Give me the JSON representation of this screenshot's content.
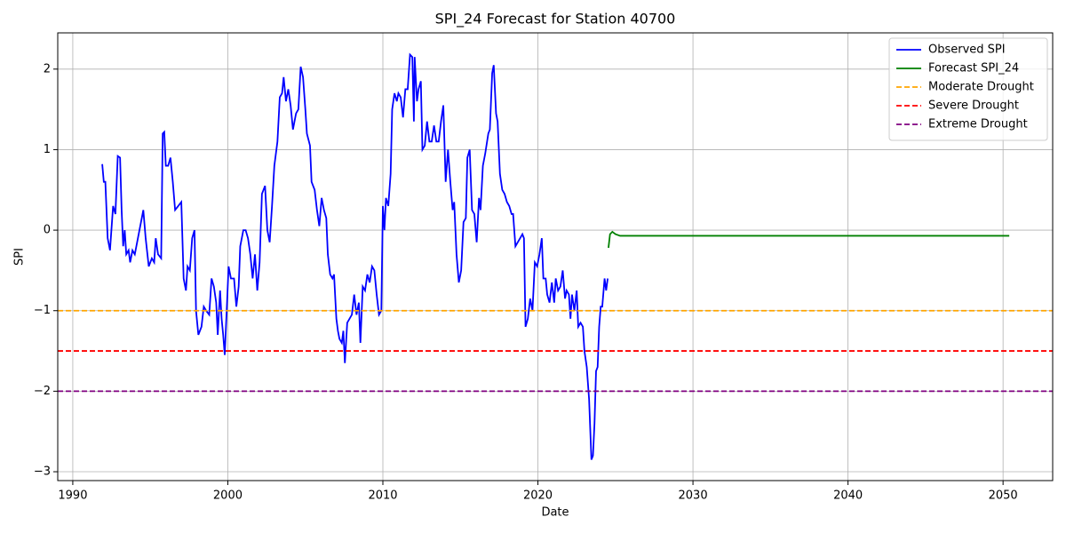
{
  "chart_data": {
    "type": "line",
    "title": "SPI_24 Forecast for Station 40700",
    "xlabel": "Date",
    "ylabel": "SPI",
    "xlim": [
      1989.03,
      2053.2
    ],
    "xticks": [
      1990,
      2000,
      2010,
      2020,
      2030,
      2040,
      2050
    ],
    "ylim": [
      -3.11,
      2.45
    ],
    "yticks": [
      {
        "value": -3,
        "label": "−3"
      },
      {
        "value": -2,
        "label": "−2"
      },
      {
        "value": -1,
        "label": "−1"
      },
      0,
      1,
      2
    ],
    "grid": true,
    "legend": "upper right",
    "series": [
      {
        "name": "Observed SPI",
        "color": "#0000ff",
        "x": [
          1991.9,
          1992.0,
          1992.1,
          1992.25,
          1992.4,
          1992.6,
          1992.75,
          1992.9,
          1993.05,
          1993.15,
          1993.25,
          1993.35,
          1993.45,
          1993.6,
          1993.7,
          1993.85,
          1994.0,
          1994.2,
          1994.4,
          1994.55,
          1994.7,
          1994.9,
          1995.1,
          1995.25,
          1995.35,
          1995.5,
          1995.7,
          1995.8,
          1995.9,
          1996.0,
          1996.15,
          1996.3,
          1996.45,
          1996.6,
          1996.8,
          1997.0,
          1997.15,
          1997.3,
          1997.4,
          1997.55,
          1997.7,
          1997.85,
          1997.95,
          1998.1,
          1998.3,
          1998.45,
          1998.6,
          1998.8,
          1998.95,
          1999.1,
          1999.25,
          1999.35,
          1999.5,
          1999.6,
          1999.7,
          1999.8,
          1999.95,
          2000.05,
          2000.2,
          2000.4,
          2000.55,
          2000.7,
          2000.8,
          2001.0,
          2001.15,
          2001.3,
          2001.45,
          2001.6,
          2001.75,
          2001.9,
          2002.05,
          2002.2,
          2002.4,
          2002.55,
          2002.7,
          2002.85,
          2003.0,
          2003.2,
          2003.35,
          2003.5,
          2003.6,
          2003.75,
          2003.9,
          2004.05,
          2004.2,
          2004.4,
          2004.55,
          2004.7,
          2004.85,
          2005.0,
          2005.1,
          2005.3,
          2005.4,
          2005.6,
          2005.75,
          2005.9,
          2006.05,
          2006.2,
          2006.35,
          2006.45,
          2006.6,
          2006.75,
          2006.85,
          2007.0,
          2007.1,
          2007.2,
          2007.35,
          2007.45,
          2007.55,
          2007.7,
          2007.85,
          2008.0,
          2008.15,
          2008.3,
          2008.45,
          2008.55,
          2008.7,
          2008.85,
          2009.0,
          2009.15,
          2009.3,
          2009.45,
          2009.6,
          2009.75,
          2009.9,
          2010.0,
          2010.1,
          2010.2,
          2010.35,
          2010.5,
          2010.6,
          2010.75,
          2010.9,
          2011.0,
          2011.15,
          2011.3,
          2011.45,
          2011.6,
          2011.75,
          2011.9,
          2012.0,
          2012.05,
          2012.2,
          2012.3,
          2012.45,
          2012.55,
          2012.7,
          2012.85,
          2013.0,
          2013.15,
          2013.3,
          2013.45,
          2013.6,
          2013.75,
          2013.9,
          2014.05,
          2014.2,
          2014.35,
          2014.5,
          2014.6,
          2014.75,
          2014.9,
          2015.05,
          2015.2,
          2015.35,
          2015.45,
          2015.6,
          2015.75,
          2015.9,
          2016.05,
          2016.2,
          2016.3,
          2016.45,
          2016.6,
          2016.8,
          2016.9,
          2017.05,
          2017.15,
          2017.3,
          2017.4,
          2017.55,
          2017.7,
          2017.85,
          2018.0,
          2018.15,
          2018.3,
          2018.4,
          2018.55,
          2018.7,
          2018.85,
          2019.0,
          2019.1,
          2019.2,
          2019.35,
          2019.5,
          2019.65,
          2019.8,
          2019.95,
          2020.1,
          2020.25,
          2020.35,
          2020.5,
          2020.6,
          2020.75,
          2020.9,
          2021.05,
          2021.15,
          2021.3,
          2021.45,
          2021.6,
          2021.75,
          2021.85,
          2022.0,
          2022.1,
          2022.2,
          2022.35,
          2022.5,
          2022.6,
          2022.75,
          2022.9,
          2023.0,
          2023.15,
          2023.3,
          2023.45,
          2023.55,
          2023.65,
          2023.75,
          2023.85,
          2023.95,
          2024.05,
          2024.15,
          2024.3,
          2024.4,
          2024.5
        ],
        "values": [
          0.82,
          0.6,
          0.6,
          -0.1,
          -0.25,
          0.3,
          0.2,
          0.92,
          0.9,
          0.25,
          -0.2,
          0.0,
          -0.3,
          -0.25,
          -0.4,
          -0.25,
          -0.3,
          -0.1,
          0.1,
          0.25,
          -0.1,
          -0.45,
          -0.35,
          -0.4,
          -0.1,
          -0.3,
          -0.35,
          1.2,
          1.22,
          0.8,
          0.8,
          0.9,
          0.6,
          0.25,
          0.3,
          0.35,
          -0.6,
          -0.75,
          -0.45,
          -0.5,
          -0.1,
          0.0,
          -1.0,
          -1.3,
          -1.2,
          -0.95,
          -1.0,
          -1.05,
          -0.6,
          -0.7,
          -0.9,
          -1.3,
          -0.75,
          -1.1,
          -1.3,
          -1.55,
          -0.9,
          -0.45,
          -0.6,
          -0.6,
          -0.95,
          -0.7,
          -0.2,
          0.0,
          0.0,
          -0.1,
          -0.3,
          -0.6,
          -0.3,
          -0.75,
          -0.4,
          0.45,
          0.55,
          0.0,
          -0.15,
          0.3,
          0.8,
          1.1,
          1.65,
          1.7,
          1.9,
          1.6,
          1.75,
          1.55,
          1.25,
          1.45,
          1.5,
          2.03,
          1.9,
          1.5,
          1.2,
          1.05,
          0.6,
          0.5,
          0.25,
          0.05,
          0.4,
          0.25,
          0.15,
          -0.3,
          -0.55,
          -0.6,
          -0.55,
          -1.1,
          -1.25,
          -1.35,
          -1.4,
          -1.25,
          -1.65,
          -1.15,
          -1.1,
          -1.05,
          -0.8,
          -1.05,
          -0.9,
          -1.4,
          -0.7,
          -0.75,
          -0.55,
          -0.65,
          -0.45,
          -0.5,
          -0.8,
          -1.05,
          -1.0,
          0.3,
          0.0,
          0.4,
          0.3,
          0.7,
          1.5,
          1.7,
          1.6,
          1.7,
          1.65,
          1.4,
          1.75,
          1.75,
          2.18,
          2.15,
          1.35,
          2.15,
          1.6,
          1.75,
          1.85,
          1.0,
          1.05,
          1.35,
          1.1,
          1.1,
          1.3,
          1.1,
          1.1,
          1.35,
          1.55,
          0.6,
          1.0,
          0.6,
          0.25,
          0.35,
          -0.3,
          -0.65,
          -0.5,
          0.1,
          0.15,
          0.9,
          1.0,
          0.25,
          0.2,
          -0.15,
          0.4,
          0.25,
          0.8,
          0.95,
          1.2,
          1.25,
          1.95,
          2.05,
          1.45,
          1.35,
          0.7,
          0.5,
          0.45,
          0.35,
          0.3,
          0.2,
          0.2,
          -0.2,
          -0.15,
          -0.1,
          -0.05,
          -0.1,
          -1.2,
          -1.1,
          -0.85,
          -1.0,
          -0.4,
          -0.45,
          -0.3,
          -0.1,
          -0.6,
          -0.6,
          -0.8,
          -0.9,
          -0.65,
          -0.9,
          -0.6,
          -0.75,
          -0.7,
          -0.5,
          -0.85,
          -0.75,
          -0.8,
          -1.1,
          -0.8,
          -1.0,
          -0.75,
          -1.2,
          -1.15,
          -1.2,
          -1.5,
          -1.7,
          -2.1,
          -2.85,
          -2.8,
          -2.4,
          -1.75,
          -1.7,
          -1.2,
          -0.95,
          -0.95,
          -0.6,
          -0.75,
          -0.6
        ]
      },
      {
        "name": "Forecast SPI_24",
        "color": "#008000",
        "x": [
          2024.55,
          2024.65,
          2024.8,
          2025.0,
          2025.3,
          2026.0,
          2050.4
        ],
        "values": [
          -0.22,
          -0.05,
          -0.02,
          -0.05,
          -0.07,
          -0.07,
          -0.07
        ]
      }
    ],
    "reference_lines": [
      {
        "name": "Moderate Drought",
        "color": "#ffa500",
        "value": -1
      },
      {
        "name": "Severe Drought",
        "color": "#ff0000",
        "value": -1.5
      },
      {
        "name": "Extreme Drought",
        "color": "#800080",
        "value": -2
      }
    ]
  }
}
